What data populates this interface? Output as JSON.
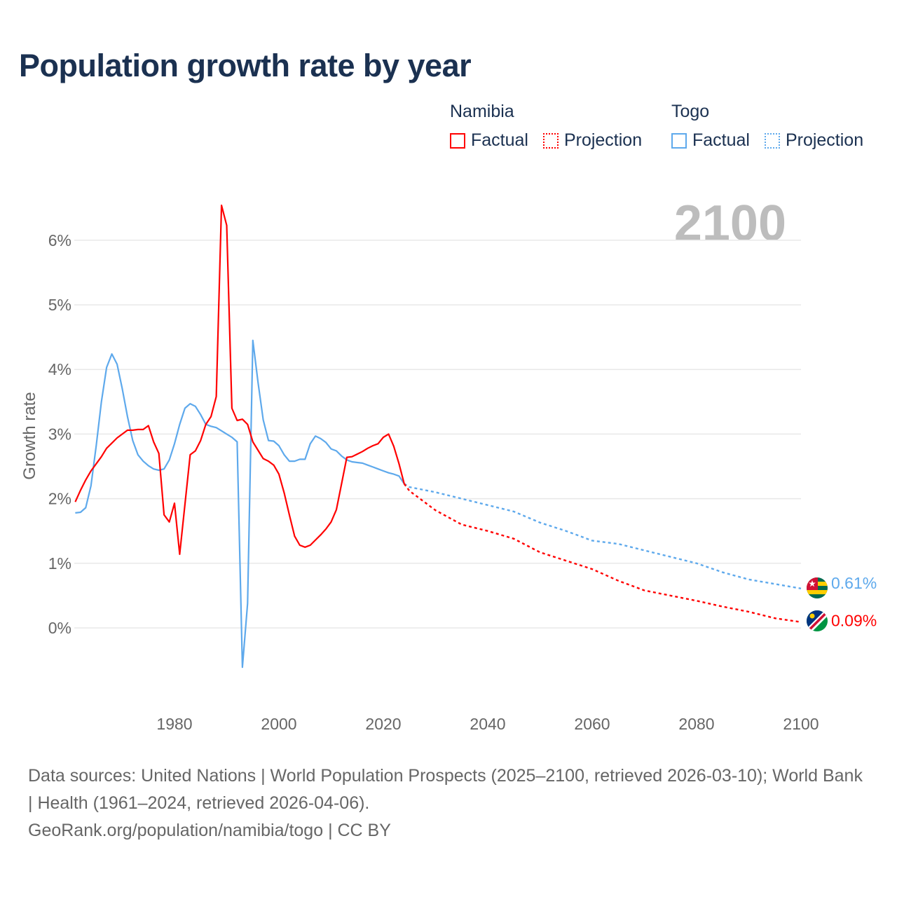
{
  "title": "Population growth rate by year",
  "legend": {
    "groups": [
      {
        "name": "Namibia",
        "factual": "Factual",
        "projection": "Projection",
        "color": "#ff0000"
      },
      {
        "name": "Togo",
        "factual": "Factual",
        "projection": "Projection",
        "color": "#5ea9ec"
      }
    ]
  },
  "current_year": "2100",
  "footer": {
    "sources": "Data sources: United Nations | World Population Prospects (2025–2100, retrieved 2026-03-10); World Bank | Health (1961–2024, retrieved 2026-04-06).",
    "credit": "GeoRank.org/population/namibia/togo | CC BY"
  },
  "chart_data": {
    "type": "line",
    "title": "Population growth rate by year",
    "xlabel": "",
    "ylabel": "Growth rate",
    "xlim": [
      1961,
      2100
    ],
    "ylim": [
      -1.0,
      6.6
    ],
    "x_ticks": [
      1980,
      2000,
      2020,
      2040,
      2060,
      2080,
      2100
    ],
    "y_ticks": [
      0,
      1,
      2,
      3,
      4,
      5,
      6
    ],
    "y_tick_labels": [
      "0%",
      "1%",
      "2%",
      "3%",
      "4%",
      "5%",
      "6%"
    ],
    "grid": true,
    "series": [
      {
        "name": "Namibia",
        "color": "#ff0000",
        "end_label": "0.09%",
        "factual": {
          "x": [
            1961,
            1962,
            1963,
            1964,
            1965,
            1966,
            1967,
            1968,
            1969,
            1970,
            1971,
            1972,
            1973,
            1974,
            1975,
            1976,
            1977,
            1978,
            1979,
            1980,
            1981,
            1982,
            1983,
            1984,
            1985,
            1986,
            1987,
            1988,
            1989,
            1990,
            1991,
            1992,
            1993,
            1994,
            1995,
            1996,
            1997,
            1998,
            1999,
            2000,
            2001,
            2002,
            2003,
            2004,
            2005,
            2006,
            2007,
            2008,
            2009,
            2010,
            2011,
            2012,
            2013,
            2014,
            2015,
            2016,
            2017,
            2018,
            2019,
            2020,
            2021,
            2022,
            2023,
            2024
          ],
          "y": [
            1.95,
            2.13,
            2.29,
            2.43,
            2.54,
            2.65,
            2.78,
            2.86,
            2.94,
            3.0,
            3.06,
            3.06,
            3.07,
            3.07,
            3.13,
            2.88,
            2.7,
            1.75,
            1.64,
            1.93,
            1.14,
            1.91,
            2.68,
            2.74,
            2.9,
            3.15,
            3.27,
            3.58,
            6.54,
            6.23,
            3.4,
            3.21,
            3.23,
            3.15,
            2.88,
            2.75,
            2.62,
            2.58,
            2.52,
            2.38,
            2.09,
            1.75,
            1.42,
            1.28,
            1.25,
            1.28,
            1.36,
            1.44,
            1.53,
            1.64,
            1.83,
            2.23,
            2.64,
            2.65,
            2.69,
            2.73,
            2.78,
            2.82,
            2.85,
            2.95,
            3.0,
            2.81,
            2.54,
            2.23
          ]
        },
        "projection": {
          "x": [
            2024,
            2025,
            2030,
            2035,
            2040,
            2045,
            2050,
            2055,
            2060,
            2065,
            2070,
            2075,
            2080,
            2085,
            2090,
            2095,
            2100
          ],
          "y": [
            2.23,
            2.12,
            1.82,
            1.6,
            1.5,
            1.38,
            1.17,
            1.04,
            0.91,
            0.73,
            0.58,
            0.5,
            0.42,
            0.33,
            0.25,
            0.15,
            0.09
          ]
        }
      },
      {
        "name": "Togo",
        "color": "#5ea9ec",
        "end_label": "0.61%",
        "factual": {
          "x": [
            1961,
            1962,
            1963,
            1964,
            1965,
            1966,
            1967,
            1968,
            1969,
            1970,
            1971,
            1972,
            1973,
            1974,
            1975,
            1976,
            1977,
            1978,
            1979,
            1980,
            1981,
            1982,
            1983,
            1984,
            1985,
            1986,
            1987,
            1988,
            1989,
            1990,
            1991,
            1992,
            1993,
            1994,
            1995,
            1996,
            1997,
            1998,
            1999,
            2000,
            2001,
            2002,
            2003,
            2004,
            2005,
            2006,
            2007,
            2008,
            2009,
            2010,
            2011,
            2012,
            2013,
            2014,
            2015,
            2016,
            2017,
            2018,
            2019,
            2020,
            2021,
            2022,
            2023,
            2024
          ],
          "y": [
            1.78,
            1.79,
            1.86,
            2.2,
            2.82,
            3.5,
            4.03,
            4.24,
            4.08,
            3.7,
            3.27,
            2.9,
            2.68,
            2.58,
            2.51,
            2.46,
            2.44,
            2.46,
            2.6,
            2.85,
            3.15,
            3.4,
            3.47,
            3.43,
            3.3,
            3.15,
            3.12,
            3.1,
            3.05,
            3.0,
            2.95,
            2.88,
            -0.61,
            0.38,
            4.45,
            3.8,
            3.22,
            2.9,
            2.89,
            2.82,
            2.68,
            2.58,
            2.58,
            2.61,
            2.61,
            2.85,
            2.97,
            2.93,
            2.87,
            2.77,
            2.74,
            2.66,
            2.6,
            2.57,
            2.56,
            2.55,
            2.52,
            2.49,
            2.46,
            2.43,
            2.4,
            2.38,
            2.35,
            2.23
          ]
        },
        "projection": {
          "x": [
            2024,
            2025,
            2030,
            2035,
            2040,
            2045,
            2050,
            2055,
            2060,
            2065,
            2070,
            2075,
            2080,
            2085,
            2090,
            2095,
            2100
          ],
          "y": [
            2.23,
            2.18,
            2.1,
            2.0,
            1.9,
            1.8,
            1.63,
            1.5,
            1.35,
            1.3,
            1.2,
            1.1,
            1.0,
            0.86,
            0.75,
            0.68,
            0.61
          ]
        }
      }
    ]
  }
}
